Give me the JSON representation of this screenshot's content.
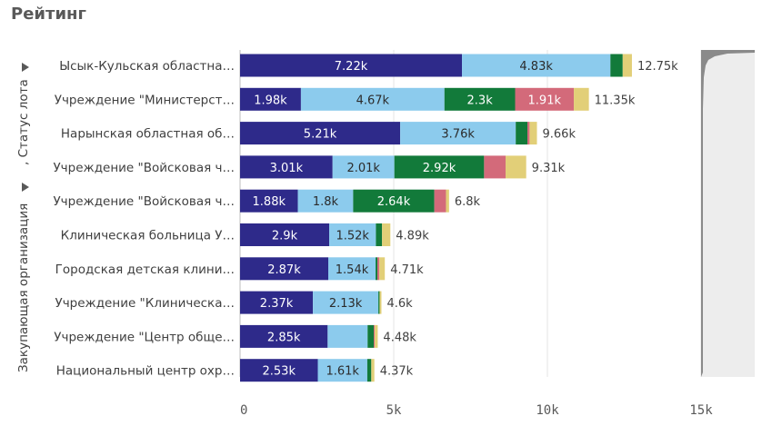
{
  "title": "Рейтинг",
  "dimension_labels": [
    "Закупающая организация",
    ", Статус лота"
  ],
  "colors": [
    "#2e2a8a",
    "#8ccbed",
    "#127a3a",
    "#d36a7a",
    "#e2cf78"
  ],
  "chart_data": {
    "type": "bar",
    "orientation": "horizontal",
    "stacked": true,
    "title": "Рейтинг",
    "xlim": [
      0,
      15000
    ],
    "xticks": [
      {
        "value": 0,
        "label": "0"
      },
      {
        "value": 5000,
        "label": "5k"
      },
      {
        "value": 10000,
        "label": "10k"
      },
      {
        "value": 15000,
        "label": "15k"
      }
    ],
    "categories": [
      "Ысык-Кульская областна…",
      "Учреждение \"Министерст…",
      "Нарынская областная об…",
      "Учреждение \"Войсковая ч…",
      "Учреждение \"Войсковая ч…",
      "Клиническая больница У…",
      "Городская детская клини…",
      "Учреждение \"Клиническа…",
      "Учреждение \"Центр обще…",
      "Национальный центр охр…"
    ],
    "series": [
      {
        "values": [
          7220,
          1980,
          5210,
          3010,
          1880,
          2900,
          2870,
          2370,
          2850,
          2530
        ],
        "labels": [
          "7.22k",
          "1.98k",
          "5.21k",
          "3.01k",
          "1.88k",
          "2.9k",
          "2.87k",
          "2.37k",
          "2.85k",
          "2.53k"
        ]
      },
      {
        "values": [
          4830,
          4670,
          3760,
          2010,
          1800,
          1520,
          1540,
          2130,
          1300,
          1610
        ],
        "labels": [
          "4.83k",
          "4.67k",
          "3.76k",
          "2.01k",
          "1.8k",
          "1.52k",
          "1.54k",
          "2.13k",
          "",
          "1.61k"
        ]
      },
      {
        "values": [
          400,
          2300,
          380,
          2920,
          2640,
          200,
          60,
          40,
          200,
          130
        ],
        "labels": [
          "",
          "2.3k",
          "",
          "2.92k",
          "2.64k",
          "",
          "",
          "",
          "",
          ""
        ]
      },
      {
        "values": [
          0,
          1910,
          70,
          700,
          380,
          0,
          60,
          0,
          30,
          0
        ],
        "labels": [
          "",
          "1.91k",
          "",
          "",
          "",
          "",
          "",
          "",
          "",
          ""
        ]
      },
      {
        "values": [
          300,
          490,
          240,
          670,
          100,
          270,
          180,
          60,
          100,
          100
        ],
        "labels": [
          "",
          "",
          "",
          "",
          "",
          "",
          "",
          "",
          "",
          ""
        ]
      }
    ],
    "totals": [
      "12.75k",
      "11.35k",
      "9.66k",
      "9.31k",
      "6.8k",
      "4.89k",
      "4.71k",
      "4.6k",
      "4.48k",
      "4.37k"
    ],
    "grid": true
  }
}
